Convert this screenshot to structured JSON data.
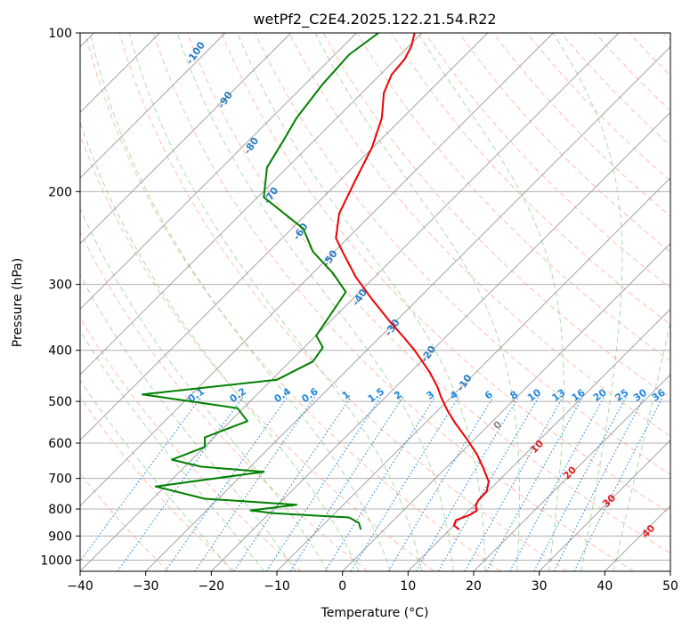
{
  "chart_data": {
    "type": "line",
    "title": "wetPf2_C2E4.2025.122.21.54.R22",
    "xlabel": "Temperature (°C)",
    "ylabel": "Pressure (hPa)",
    "xlim": [
      -40,
      50
    ],
    "ylim": [
      1050,
      100
    ],
    "y_scale": "log",
    "grid": true,
    "x_ticks": [
      "−40",
      "−30",
      "−20",
      "−10",
      "0",
      "10",
      "20",
      "30",
      "40",
      "50"
    ],
    "x_tick_values": [
      -40,
      -30,
      -20,
      -10,
      0,
      10,
      20,
      30,
      40,
      50
    ],
    "y_ticks": [
      "100",
      "200",
      "300",
      "400",
      "500",
      "600",
      "700",
      "800",
      "900",
      "1000"
    ],
    "y_tick_values": [
      100,
      200,
      300,
      400,
      500,
      600,
      700,
      800,
      900,
      1000
    ],
    "colors": {
      "temperature": "#ee0000",
      "dewpoint": "#008000",
      "isotherm": "#999999",
      "dry_adiabat": "#ff8866",
      "moist_adiabat": "#88cc88",
      "mixing_ratio": "#2288dd",
      "label_blue": "#2a7cc0",
      "label_red": "#dd2222",
      "label_gray": "#888888"
    },
    "series": [
      {
        "name": "",
        "role": "temperature",
        "points": [
          [
            17.8,
            875
          ],
          [
            17.0,
            860
          ],
          [
            17.3,
            840
          ],
          [
            19.5,
            820
          ],
          [
            20.5,
            805
          ],
          [
            20.3,
            790
          ],
          [
            20.7,
            770
          ],
          [
            22.0,
            740
          ],
          [
            22.3,
            710
          ],
          [
            21.5,
            670
          ],
          [
            20.5,
            630
          ],
          [
            19.0,
            590
          ],
          [
            17.2,
            550
          ],
          [
            16.0,
            520
          ],
          [
            15.0,
            490
          ],
          [
            14.5,
            470
          ],
          [
            13.3,
            440
          ],
          [
            11.0,
            400
          ],
          [
            9.5,
            380
          ],
          [
            7.0,
            350
          ],
          [
            4.5,
            320
          ],
          [
            2.0,
            290
          ],
          [
            0.0,
            260
          ],
          [
            -1.0,
            245
          ],
          [
            -0.5,
            220
          ],
          [
            2.0,
            190
          ],
          [
            4.5,
            165
          ],
          [
            6.0,
            145
          ],
          [
            6.3,
            130
          ],
          [
            7.5,
            120
          ],
          [
            9.5,
            112
          ],
          [
            10.5,
            106
          ],
          [
            11.0,
            100
          ]
        ]
      },
      {
        "name": "",
        "role": "dewpoint",
        "points": [
          [
            2.8,
            875
          ],
          [
            2.5,
            850
          ],
          [
            1.0,
            830
          ],
          [
            -10.5,
            815
          ],
          [
            -14.0,
            805
          ],
          [
            -7.0,
            785
          ],
          [
            -21.0,
            765
          ],
          [
            -28.5,
            725
          ],
          [
            -12.0,
            680
          ],
          [
            -21.5,
            665
          ],
          [
            -26.0,
            645
          ],
          [
            -21.0,
            610
          ],
          [
            -21.0,
            585
          ],
          [
            -14.5,
            545
          ],
          [
            -16.0,
            515
          ],
          [
            -30.5,
            485
          ],
          [
            -10.0,
            455
          ],
          [
            -4.5,
            420
          ],
          [
            -3.0,
            395
          ],
          [
            -4.0,
            375
          ],
          [
            -2.0,
            345
          ],
          [
            0.5,
            310
          ],
          [
            -1.5,
            285
          ],
          [
            -4.5,
            260
          ],
          [
            -6.0,
            235
          ],
          [
            -12.0,
            205
          ],
          [
            -11.5,
            180
          ],
          [
            -9.0,
            160
          ],
          [
            -7.0,
            145
          ],
          [
            -3.0,
            125
          ],
          [
            1.0,
            110
          ],
          [
            5.5,
            100
          ]
        ]
      }
    ],
    "dry_adiabat_labels": [
      "-100",
      "-90",
      "-80",
      "-70",
      "-60",
      "-50",
      "-40",
      "-30",
      "-20",
      "-10"
    ],
    "moist_adiabat_labels": [
      "0",
      "10",
      "20",
      "30",
      "40"
    ],
    "mixing_ratio_labels": [
      "0.1",
      "0.2",
      "0.4",
      "0.6",
      "1",
      "1.5",
      "2",
      "3",
      "4",
      "6",
      "8",
      "10",
      "13",
      "16",
      "20",
      "25",
      "30",
      "36"
    ]
  }
}
